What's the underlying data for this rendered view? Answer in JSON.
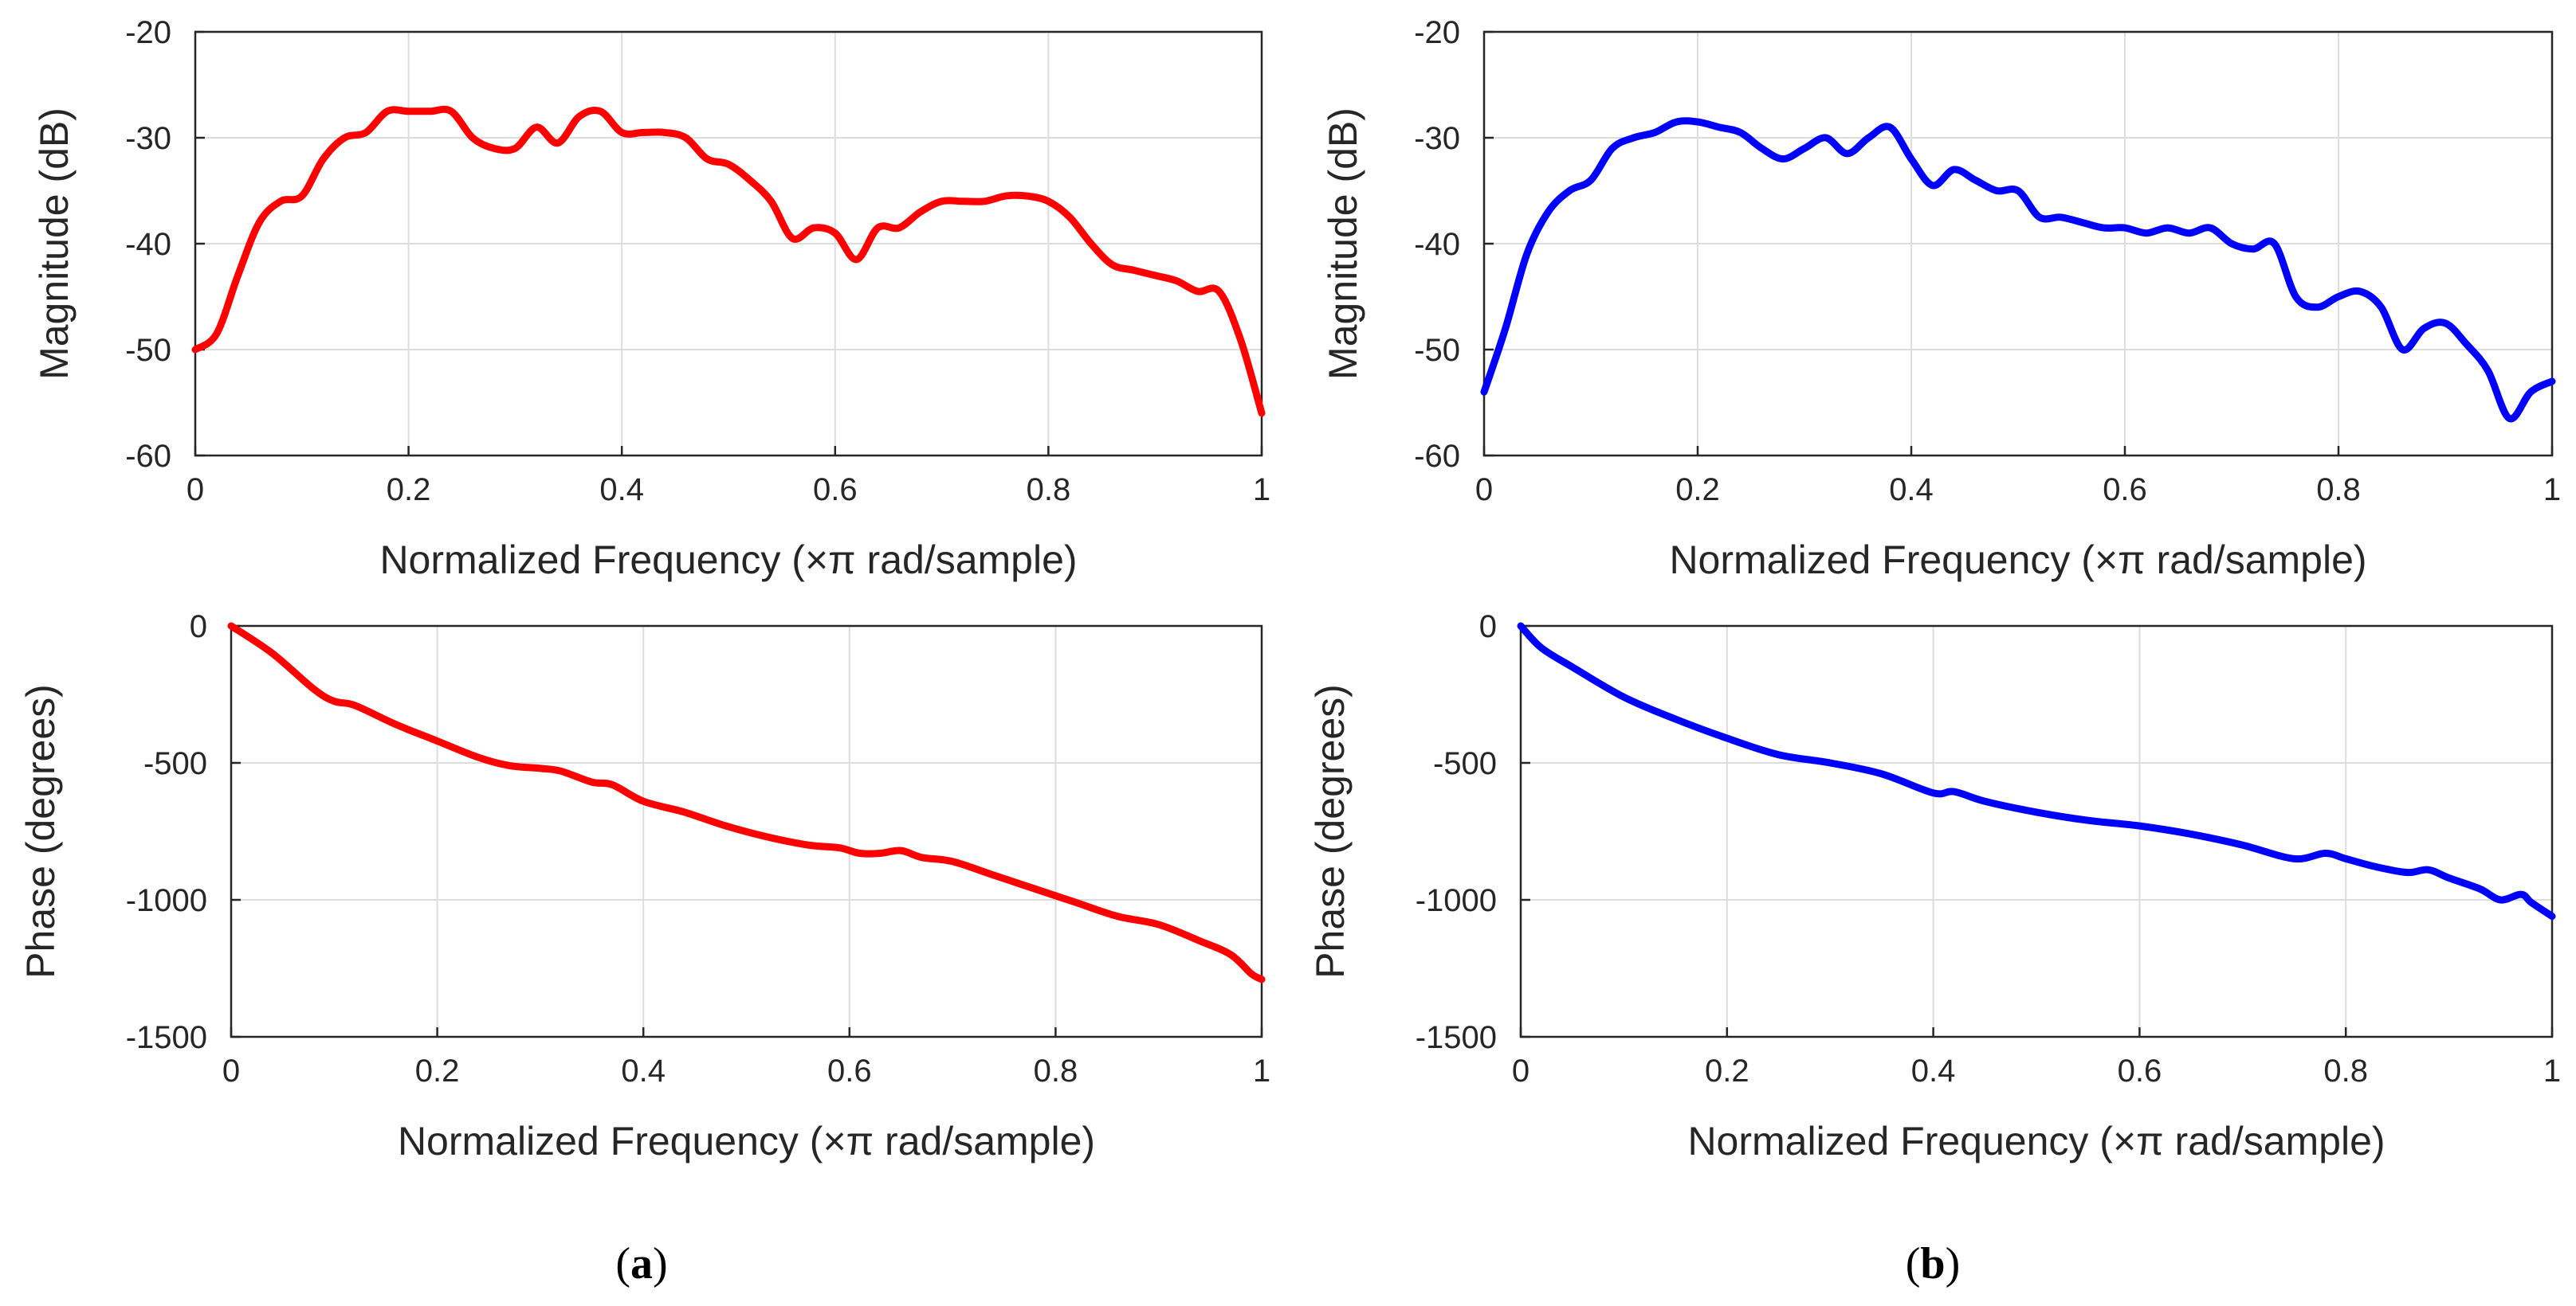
{
  "chart_data": [
    {
      "id": "a-magnitude",
      "type": "line",
      "panel": "a",
      "color": "#ff0000",
      "xlabel": "Normalized Frequency  (×π rad/sample)",
      "ylabel": "Magnitude (dB)",
      "xlim": [
        0,
        1
      ],
      "ylim": [
        -60,
        -20
      ],
      "xticks": [
        0,
        0.2,
        0.4,
        0.6,
        0.8,
        1
      ],
      "xtick_labels": [
        "0",
        "0.2",
        "0.4",
        "0.6",
        "0.8",
        "1"
      ],
      "yticks": [
        -60,
        -50,
        -40,
        -30,
        -20
      ],
      "ytick_labels": [
        "-60",
        "-50",
        "-40",
        "-30",
        "-20"
      ],
      "grid": true,
      "x": [
        0,
        0.02,
        0.04,
        0.06,
        0.08,
        0.1,
        0.12,
        0.14,
        0.16,
        0.18,
        0.2,
        0.22,
        0.24,
        0.26,
        0.28,
        0.3,
        0.32,
        0.34,
        0.36,
        0.38,
        0.4,
        0.42,
        0.44,
        0.46,
        0.48,
        0.5,
        0.52,
        0.54,
        0.56,
        0.58,
        0.6,
        0.62,
        0.64,
        0.66,
        0.68,
        0.7,
        0.72,
        0.74,
        0.76,
        0.78,
        0.8,
        0.82,
        0.84,
        0.86,
        0.88,
        0.9,
        0.92,
        0.94,
        0.96,
        0.98,
        1.0
      ],
      "y": [
        -50,
        -48.5,
        -43,
        -38,
        -36,
        -35.5,
        -32,
        -30,
        -29.5,
        -27.5,
        -27.5,
        -27.5,
        -27.5,
        -30,
        -31,
        -31,
        -29,
        -30.5,
        -28,
        -27.5,
        -29.5,
        -29.5,
        -29.5,
        -30,
        -32,
        -32.5,
        -34,
        -36,
        -39.5,
        -38.5,
        -39,
        -41.5,
        -38.5,
        -38.5,
        -37,
        -36,
        -36,
        -36,
        -35.5,
        -35.5,
        -36,
        -37.5,
        -40,
        -42,
        -42.5,
        -43,
        -43.5,
        -44.5,
        -44.5,
        -49,
        -56
      ]
    },
    {
      "id": "a-phase",
      "type": "line",
      "panel": "a",
      "color": "#ff0000",
      "xlabel": "Normalized Frequency  (×π rad/sample)",
      "ylabel": "Phase (degrees)",
      "xlim": [
        0,
        1
      ],
      "ylim": [
        -1500,
        0
      ],
      "xticks": [
        0,
        0.2,
        0.4,
        0.6,
        0.8,
        1
      ],
      "xtick_labels": [
        "0",
        "0.2",
        "0.4",
        "0.6",
        "0.8",
        "1"
      ],
      "yticks": [
        -1500,
        -1000,
        -500,
        0
      ],
      "ytick_labels": [
        "-1500",
        "-1000",
        "-500",
        "0"
      ],
      "grid": true,
      "x": [
        0,
        0.04,
        0.08,
        0.1,
        0.12,
        0.16,
        0.2,
        0.24,
        0.27,
        0.3,
        0.32,
        0.35,
        0.37,
        0.4,
        0.44,
        0.48,
        0.52,
        0.56,
        0.59,
        0.61,
        0.63,
        0.65,
        0.67,
        0.7,
        0.74,
        0.78,
        0.82,
        0.86,
        0.9,
        0.94,
        0.97,
        0.99,
        1.0
      ],
      "y": [
        0,
        -100,
        -230,
        -275,
        -290,
        -360,
        -420,
        -480,
        -510,
        -520,
        -530,
        -570,
        -580,
        -640,
        -680,
        -730,
        -770,
        -800,
        -810,
        -830,
        -830,
        -820,
        -845,
        -860,
        -910,
        -960,
        -1010,
        -1060,
        -1090,
        -1150,
        -1200,
        -1270,
        -1290
      ]
    },
    {
      "id": "b-magnitude",
      "type": "line",
      "panel": "b",
      "color": "#0000ff",
      "xlabel": "Normalized Frequency  (×π rad/sample)",
      "ylabel": "Magnitude (dB)",
      "xlim": [
        0,
        1
      ],
      "ylim": [
        -60,
        -20
      ],
      "xticks": [
        0,
        0.2,
        0.4,
        0.6,
        0.8,
        1
      ],
      "xtick_labels": [
        "0",
        "0.2",
        "0.4",
        "0.6",
        "0.8",
        "1"
      ],
      "yticks": [
        -60,
        -50,
        -40,
        -30,
        -20
      ],
      "ytick_labels": [
        "-60",
        "-50",
        "-40",
        "-30",
        "-20"
      ],
      "grid": true,
      "x": [
        0,
        0.02,
        0.04,
        0.06,
        0.08,
        0.1,
        0.12,
        0.14,
        0.16,
        0.18,
        0.2,
        0.22,
        0.24,
        0.26,
        0.28,
        0.3,
        0.32,
        0.34,
        0.36,
        0.38,
        0.4,
        0.42,
        0.44,
        0.46,
        0.48,
        0.5,
        0.52,
        0.54,
        0.56,
        0.58,
        0.6,
        0.62,
        0.64,
        0.66,
        0.68,
        0.7,
        0.72,
        0.74,
        0.76,
        0.78,
        0.8,
        0.82,
        0.84,
        0.86,
        0.88,
        0.9,
        0.92,
        0.94,
        0.96,
        0.98,
        1.0
      ],
      "y": [
        -54,
        -48,
        -41,
        -37,
        -35,
        -34,
        -31,
        -30,
        -29.5,
        -28.5,
        -28.5,
        -29,
        -29.5,
        -31,
        -32,
        -31,
        -30,
        -31.5,
        -30,
        -29,
        -32,
        -34.5,
        -33,
        -34,
        -35,
        -35,
        -37.5,
        -37.5,
        -38,
        -38.5,
        -38.5,
        -39,
        -38.5,
        -39,
        -38.5,
        -40,
        -40.5,
        -40,
        -45,
        -46,
        -45,
        -44.5,
        -46,
        -50,
        -48,
        -47.5,
        -49.5,
        -52,
        -56.5,
        -54,
        -53
      ]
    },
    {
      "id": "b-phase",
      "type": "line",
      "panel": "b",
      "color": "#0000ff",
      "xlabel": "Normalized Frequency  (×π rad/sample)",
      "ylabel": "Phase (degrees)",
      "xlim": [
        0,
        1
      ],
      "ylim": [
        -1500,
        0
      ],
      "xticks": [
        0,
        0.2,
        0.4,
        0.6,
        0.8,
        1
      ],
      "xtick_labels": [
        "0",
        "0.2",
        "0.4",
        "0.6",
        "0.8",
        "1"
      ],
      "yticks": [
        -1500,
        -1000,
        -500,
        0
      ],
      "ytick_labels": [
        "-1500",
        "-1000",
        "-500",
        "0"
      ],
      "grid": true,
      "x": [
        0,
        0.02,
        0.05,
        0.1,
        0.15,
        0.2,
        0.25,
        0.3,
        0.35,
        0.4,
        0.42,
        0.45,
        0.5,
        0.55,
        0.6,
        0.65,
        0.7,
        0.75,
        0.78,
        0.8,
        0.83,
        0.86,
        0.88,
        0.9,
        0.93,
        0.95,
        0.97,
        0.98,
        1.0
      ],
      "y": [
        0,
        -80,
        -150,
        -260,
        -340,
        -410,
        -470,
        -500,
        -540,
        -610,
        -605,
        -640,
        -680,
        -710,
        -730,
        -760,
        -800,
        -850,
        -830,
        -850,
        -880,
        -900,
        -890,
        -920,
        -960,
        -1000,
        -980,
        -1010,
        -1060
      ]
    }
  ],
  "captions": {
    "a": {
      "open": "(",
      "letter": "a",
      "close": ")"
    },
    "b": {
      "open": "(",
      "letter": "b",
      "close": ")"
    }
  }
}
